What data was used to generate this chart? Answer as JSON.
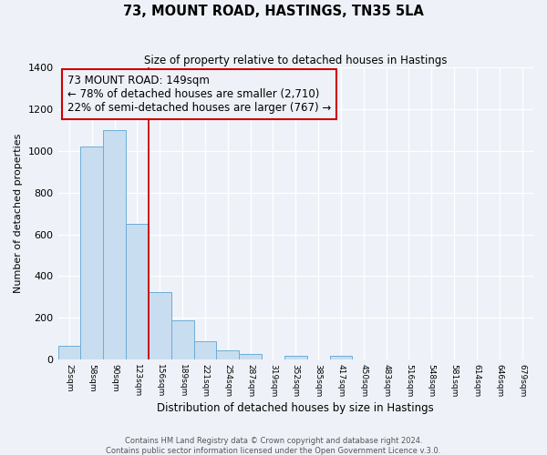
{
  "title": "73, MOUNT ROAD, HASTINGS, TN35 5LA",
  "subtitle": "Size of property relative to detached houses in Hastings",
  "xlabel": "Distribution of detached houses by size in Hastings",
  "ylabel": "Number of detached properties",
  "bar_labels": [
    "25sqm",
    "58sqm",
    "90sqm",
    "123sqm",
    "156sqm",
    "189sqm",
    "221sqm",
    "254sqm",
    "287sqm",
    "319sqm",
    "352sqm",
    "385sqm",
    "417sqm",
    "450sqm",
    "483sqm",
    "516sqm",
    "548sqm",
    "581sqm",
    "614sqm",
    "646sqm",
    "679sqm"
  ],
  "bar_values": [
    65,
    1020,
    1100,
    650,
    325,
    190,
    88,
    45,
    25,
    0,
    20,
    0,
    18,
    0,
    0,
    0,
    0,
    0,
    0,
    0,
    0
  ],
  "bar_color": "#c9ddf0",
  "bar_edge_color": "#6baed6",
  "vline_x": 4,
  "vline_color": "#cc0000",
  "annotation_title": "73 MOUNT ROAD: 149sqm",
  "annotation_line1": "← 78% of detached houses are smaller (2,710)",
  "annotation_line2": "22% of semi-detached houses are larger (767) →",
  "annotation_box_color": "#cc0000",
  "ylim": [
    0,
    1400
  ],
  "yticks": [
    0,
    200,
    400,
    600,
    800,
    1000,
    1200,
    1400
  ],
  "footer1": "Contains HM Land Registry data © Crown copyright and database right 2024.",
  "footer2": "Contains public sector information licensed under the Open Government Licence v.3.0.",
  "bg_color": "#eef2f8"
}
